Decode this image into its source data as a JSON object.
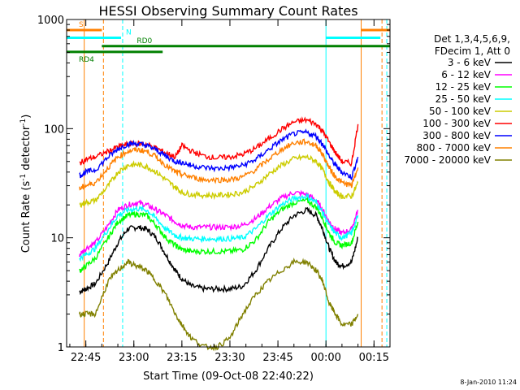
{
  "chart_data": {
    "type": "line",
    "title": "HESSI Observing Summary Count Rates",
    "xlabel": "Start Time (09-Oct-08 22:40:22)",
    "ylabel_main": "Count Rate (s",
    "ylabel_sup1": "-1",
    "ylabel_mid": " detector",
    "ylabel_sup2": "-1",
    "ylabel_end": ")",
    "x_unit": "minutes since 22:40",
    "xlim": [
      -1,
      100
    ],
    "ylim": [
      1,
      1000
    ],
    "yscale": "log",
    "x_ticks": [
      {
        "value": 5,
        "label": "22:45"
      },
      {
        "value": 20,
        "label": "23:00"
      },
      {
        "value": 35,
        "label": "23:15"
      },
      {
        "value": 50,
        "label": "23:30"
      },
      {
        "value": 65,
        "label": "23:45"
      },
      {
        "value": 80,
        "label": "00:00"
      },
      {
        "value": 95,
        "label": "00:15"
      }
    ],
    "y_ticks": [
      {
        "value": 1,
        "label": "1"
      },
      {
        "value": 10,
        "label": "10"
      },
      {
        "value": 100,
        "label": "100"
      },
      {
        "value": 1000,
        "label": "1000"
      }
    ],
    "legend_header": [
      "Det 1,3,4,5,6,9,",
      "FDecim 1, Att 0"
    ],
    "legend_placement": "right",
    "series": [
      {
        "name": "3 - 6 keV",
        "color": "#000000",
        "base": 3.5,
        "peak": 18,
        "x": [
          3,
          5,
          8,
          12,
          15,
          18,
          21,
          24,
          27,
          30,
          33,
          35,
          38,
          42,
          46,
          50,
          54,
          58,
          62,
          66,
          70,
          74,
          77,
          79,
          81,
          83,
          85,
          88,
          90
        ],
        "y": [
          3.2,
          3.4,
          3.8,
          6,
          9,
          12,
          12.5,
          12,
          10,
          7,
          5,
          4.2,
          3.6,
          3.4,
          3.4,
          3.4,
          3.6,
          5,
          8,
          12,
          16,
          18,
          16,
          12,
          8,
          6,
          5.5,
          6,
          10
        ]
      },
      {
        "name": "6 - 12 keV",
        "color": "#ff00ff",
        "x": [
          3,
          5,
          8,
          12,
          15,
          18,
          21,
          24,
          27,
          30,
          33,
          35,
          38,
          42,
          46,
          50,
          54,
          58,
          62,
          66,
          70,
          74,
          77,
          79,
          81,
          83,
          85,
          88,
          90
        ],
        "y": [
          7,
          8,
          9,
          13,
          18,
          20,
          21,
          20,
          18,
          16,
          14,
          13,
          12.5,
          12.5,
          12.5,
          12.5,
          13,
          15,
          19,
          23,
          26,
          25,
          22,
          18,
          14,
          12,
          11,
          12,
          18
        ]
      },
      {
        "name": "12 - 25 keV",
        "color": "#00ff00",
        "x": [
          3,
          5,
          8,
          12,
          15,
          18,
          21,
          24,
          27,
          30,
          33,
          35,
          38,
          42,
          46,
          50,
          54,
          58,
          62,
          66,
          70,
          74,
          77,
          79,
          81,
          83,
          85,
          88,
          90
        ],
        "y": [
          5,
          5.5,
          6.5,
          10,
          14,
          16,
          16.5,
          16,
          13,
          10,
          8.5,
          7.8,
          7.5,
          7.5,
          7.5,
          7.5,
          7.8,
          9.5,
          14,
          18,
          21,
          22,
          19,
          15,
          11,
          9,
          8.5,
          9,
          14
        ]
      },
      {
        "name": "25 - 50 keV",
        "color": "#00ffff",
        "x": [
          3,
          5,
          8,
          12,
          15,
          18,
          21,
          24,
          27,
          30,
          33,
          35,
          38,
          42,
          46,
          50,
          54,
          58,
          62,
          66,
          70,
          74,
          77,
          79,
          81,
          83,
          85,
          88,
          90
        ],
        "y": [
          6.5,
          7,
          8,
          12,
          16,
          18,
          18.5,
          18,
          15,
          12,
          10.5,
          10,
          9.8,
          9.8,
          9.8,
          9.8,
          10,
          12,
          16,
          20,
          23,
          24,
          21,
          17,
          13,
          11,
          10,
          11,
          16
        ]
      },
      {
        "name": "50 - 100 keV",
        "color": "#cccc00",
        "x": [
          3,
          5,
          8,
          12,
          15,
          18,
          21,
          24,
          27,
          30,
          33,
          35,
          38,
          42,
          46,
          50,
          54,
          58,
          62,
          66,
          70,
          74,
          77,
          79,
          81,
          83,
          85,
          88,
          90
        ],
        "y": [
          20,
          21,
          22,
          30,
          40,
          46,
          47,
          45,
          40,
          34,
          29,
          26,
          25,
          24.5,
          24.5,
          25,
          26,
          30,
          38,
          46,
          53,
          55,
          50,
          42,
          32,
          26,
          24,
          24,
          32
        ]
      },
      {
        "name": "100 - 300 keV",
        "color": "#ff0000",
        "x": [
          3,
          5,
          8,
          12,
          15,
          18,
          21,
          24,
          27,
          30,
          33,
          35,
          38,
          42,
          46,
          50,
          54,
          58,
          62,
          66,
          70,
          74,
          77,
          79,
          81,
          83,
          85,
          88,
          90
        ],
        "y": [
          48,
          52,
          55,
          62,
          68,
          72,
          73,
          72,
          66,
          60,
          55,
          70,
          62,
          56,
          54,
          55,
          58,
          66,
          80,
          98,
          115,
          120,
          110,
          95,
          75,
          60,
          50,
          48,
          110
        ]
      },
      {
        "name": "300 - 800 keV",
        "color": "#0000ff",
        "x": [
          3,
          5,
          8,
          12,
          15,
          18,
          21,
          24,
          27,
          30,
          33,
          35,
          38,
          42,
          46,
          50,
          54,
          58,
          62,
          66,
          70,
          74,
          77,
          79,
          81,
          83,
          85,
          88,
          90
        ],
        "y": [
          37,
          40,
          42,
          55,
          65,
          72,
          73,
          70,
          64,
          56,
          50,
          49,
          46,
          44,
          43,
          44,
          46,
          52,
          64,
          78,
          90,
          92,
          85,
          72,
          56,
          46,
          40,
          36,
          55
        ]
      },
      {
        "name": "800 - 7000 keV",
        "color": "#ff8000",
        "x": [
          3,
          5,
          8,
          12,
          15,
          18,
          21,
          24,
          27,
          30,
          33,
          35,
          38,
          42,
          46,
          50,
          54,
          58,
          62,
          66,
          70,
          74,
          77,
          79,
          81,
          83,
          85,
          88,
          90
        ],
        "y": [
          28,
          30,
          32,
          44,
          55,
          62,
          64,
          62,
          55,
          46,
          40,
          38,
          36,
          34,
          34,
          34,
          36,
          42,
          52,
          64,
          74,
          76,
          70,
          58,
          44,
          36,
          32,
          30,
          44
        ]
      },
      {
        "name": "7000 - 20000 keV",
        "color": "#808000",
        "x": [
          3,
          5,
          8,
          12,
          15,
          18,
          21,
          24,
          27,
          30,
          33,
          35,
          38,
          42,
          46,
          50,
          54,
          58,
          62,
          66,
          70,
          74,
          77,
          79,
          81,
          83,
          85,
          88,
          90
        ],
        "y": [
          2,
          2,
          2,
          4,
          5,
          6,
          5.5,
          5,
          4,
          3,
          2,
          1.6,
          1.2,
          1,
          1,
          1.2,
          2,
          3,
          4,
          5,
          6,
          6,
          5,
          4,
          2.5,
          2,
          1.6,
          1.6,
          2
        ]
      }
    ],
    "flags": [
      {
        "label": "S",
        "color": "#ff8000",
        "segments": [
          [
            -1,
            10
          ],
          [
            91,
            100
          ]
        ],
        "value": 800
      },
      {
        "label": "N",
        "color": "#00ffff",
        "segments": [
          [
            -1,
            16
          ],
          [
            80,
            97
          ]
        ],
        "value": 680
      },
      {
        "label": "RD0",
        "color": "#008000",
        "segments": [
          [
            10,
            100
          ]
        ],
        "value": 570
      },
      {
        "label": "RD4",
        "color": "#008000",
        "segments": [
          [
            -1,
            29
          ]
        ],
        "value": 505
      }
    ],
    "vlines": [
      {
        "x": 4.5,
        "color": "#ff8000",
        "style": "solid"
      },
      {
        "x": 10.5,
        "color": "#ff8000",
        "style": "dashed"
      },
      {
        "x": 16.5,
        "color": "#00ffff",
        "style": "dashed"
      },
      {
        "x": 80,
        "color": "#00ffff",
        "style": "solid"
      },
      {
        "x": 91,
        "color": "#ff8000",
        "style": "solid"
      },
      {
        "x": 97.5,
        "color": "#ff8000",
        "style": "dashed"
      },
      {
        "x": 99,
        "color": "#00ffff",
        "style": "dashed"
      }
    ]
  },
  "footer_timestamp": "8-Jan-2010 11:24"
}
